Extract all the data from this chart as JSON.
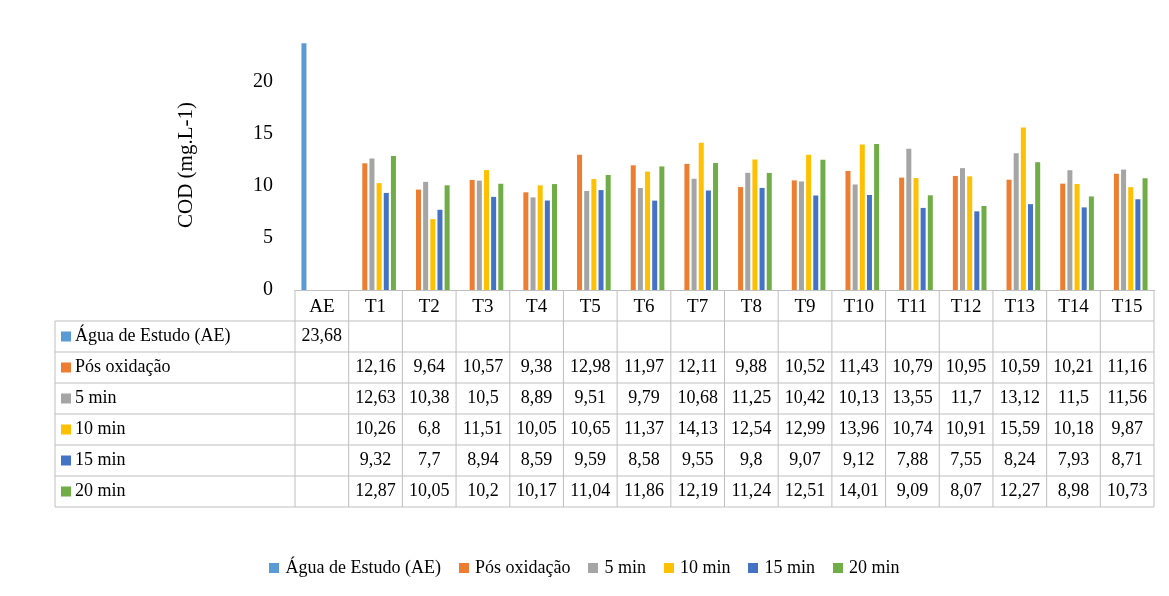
{
  "chart_data": {
    "type": "bar",
    "ylabel": "COD (mg.L-1)",
    "categories": [
      "AE",
      "T1",
      "T2",
      "T3",
      "T4",
      "T5",
      "T6",
      "T7",
      "T8",
      "T9",
      "T10",
      "T11",
      "T12",
      "T13",
      "T14",
      "T15"
    ],
    "series": [
      {
        "name": "Água de Estudo (AE)",
        "color": "#5b9bd5",
        "values": [
          23.68,
          null,
          null,
          null,
          null,
          null,
          null,
          null,
          null,
          null,
          null,
          null,
          null,
          null,
          null,
          null
        ],
        "value_labels": [
          "23,68",
          null,
          null,
          null,
          null,
          null,
          null,
          null,
          null,
          null,
          null,
          null,
          null,
          null,
          null,
          null
        ]
      },
      {
        "name": "Pós oxidação",
        "color": "#ed7d31",
        "values": [
          null,
          12.16,
          9.64,
          10.57,
          9.38,
          12.98,
          11.97,
          12.11,
          9.88,
          10.52,
          11.43,
          10.79,
          10.95,
          10.59,
          10.21,
          11.16
        ],
        "value_labels": [
          null,
          "12,16",
          "9,64",
          "10,57",
          "9,38",
          "12,98",
          "11,97",
          "12,11",
          "9,88",
          "10,52",
          "11,43",
          "10,79",
          "10,95",
          "10,59",
          "10,21",
          "11,16"
        ]
      },
      {
        "name": "5 min",
        "color": "#a5a5a5",
        "values": [
          null,
          12.63,
          10.38,
          10.5,
          8.89,
          9.51,
          9.79,
          10.68,
          11.25,
          10.42,
          10.13,
          13.55,
          11.7,
          13.12,
          11.5,
          11.56
        ],
        "value_labels": [
          null,
          "12,63",
          "10,38",
          "10,5",
          "8,89",
          "9,51",
          "9,79",
          "10,68",
          "11,25",
          "10,42",
          "10,13",
          "13,55",
          "11,7",
          "13,12",
          "11,5",
          "11,56"
        ]
      },
      {
        "name": "10 min",
        "color": "#ffc000",
        "values": [
          null,
          10.26,
          6.8,
          11.51,
          10.05,
          10.65,
          11.37,
          14.13,
          12.54,
          12.99,
          13.96,
          10.74,
          10.91,
          15.59,
          10.18,
          9.87
        ],
        "value_labels": [
          null,
          "10,26",
          "6,8",
          "11,51",
          "10,05",
          "10,65",
          "11,37",
          "14,13",
          "12,54",
          "12,99",
          "13,96",
          "10,74",
          "10,91",
          "15,59",
          "10,18",
          "9,87"
        ]
      },
      {
        "name": "15 min",
        "color": "#4472c4",
        "values": [
          null,
          9.32,
          7.7,
          8.94,
          8.59,
          9.59,
          8.58,
          9.55,
          9.8,
          9.07,
          9.12,
          7.88,
          7.55,
          8.24,
          7.93,
          8.71
        ],
        "value_labels": [
          null,
          "9,32",
          "7,7",
          "8,94",
          "8,59",
          "9,59",
          "8,58",
          "9,55",
          "9,8",
          "9,07",
          "9,12",
          "7,88",
          "7,55",
          "8,24",
          "7,93",
          "8,71"
        ]
      },
      {
        "name": "20 min",
        "color": "#70ad47",
        "values": [
          null,
          12.87,
          10.05,
          10.2,
          10.17,
          11.04,
          11.86,
          12.19,
          11.24,
          12.51,
          14.01,
          9.09,
          8.07,
          12.27,
          8.98,
          10.73
        ],
        "value_labels": [
          null,
          "12,87",
          "10,05",
          "10,2",
          "10,17",
          "11,04",
          "11,86",
          "12,19",
          "11,24",
          "12,51",
          "14,01",
          "9,09",
          "8,07",
          "12,27",
          "8,98",
          "10,73"
        ]
      }
    ],
    "ylim": [
      0,
      24
    ],
    "yticks": [
      0,
      5,
      10,
      15,
      20
    ],
    "legend": "bottom"
  }
}
